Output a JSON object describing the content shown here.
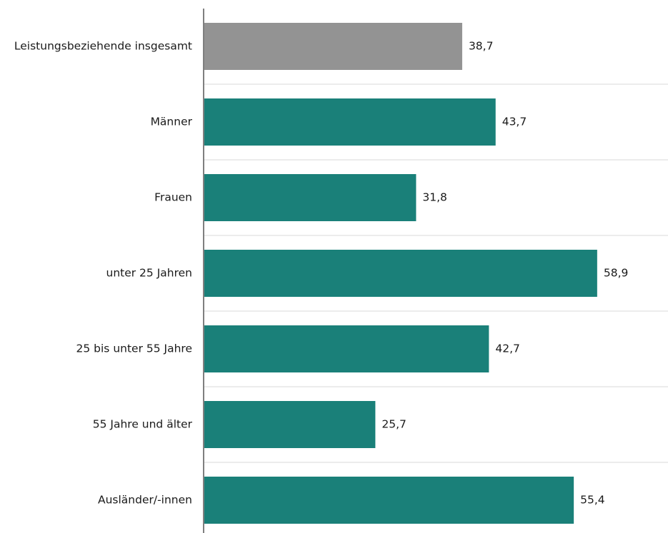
{
  "chart_data": {
    "type": "bar",
    "orientation": "horizontal",
    "categories": [
      "Leistungsbeziehende insgesamt",
      "Männer",
      "Frauen",
      "unter 25 Jahren",
      "25 bis unter 55 Jahre",
      "55 Jahre und älter",
      "Ausländer/-innen"
    ],
    "values": [
      38.7,
      43.7,
      31.8,
      58.9,
      42.7,
      25.7,
      55.4
    ],
    "value_labels": [
      "38,7",
      "43,7",
      "31,8",
      "58,9",
      "42,7",
      "25,7",
      "55,4"
    ],
    "bar_colors": [
      "#939393",
      "#1a8079",
      "#1a8079",
      "#1a8079",
      "#1a8079",
      "#1a8079",
      "#1a8079"
    ],
    "title": "",
    "xlabel": "",
    "ylabel": "",
    "xlim": [
      0,
      69.5
    ],
    "grid": "horizontal separators",
    "legend": "none"
  },
  "colors": {
    "axis": "#7f7f7f",
    "gridline": "#d9d9d9",
    "text": "#1a1a1a"
  }
}
